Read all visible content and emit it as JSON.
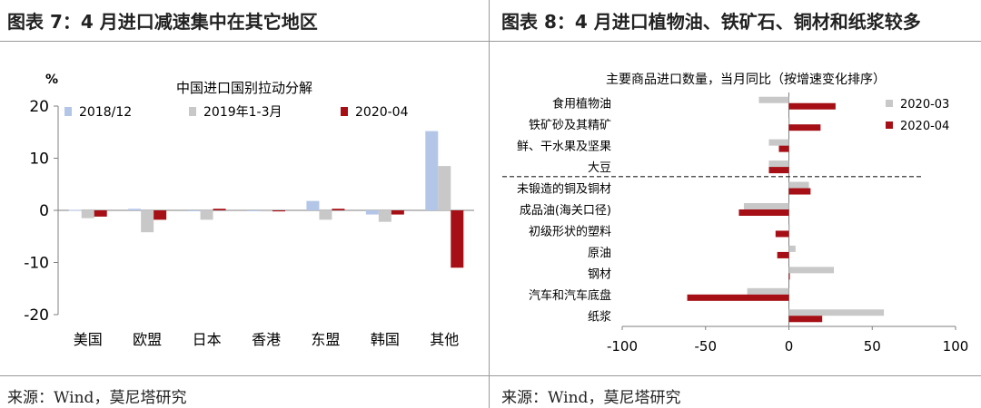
{
  "left": {
    "panel_title": "图表 7：4 月进口减速集中在其它地区",
    "source": "来源：Wind，莫尼塔研究"
  },
  "right": {
    "panel_title": "图表 8：4 月进口植物油、铁矿石、铜材和纸浆较多",
    "source": "来源：Wind，莫尼塔研究"
  },
  "chart_data": [
    {
      "type": "bar",
      "title": "中国进口国别拉动分解",
      "ylabel": "%",
      "ylim": [
        -20,
        20
      ],
      "yticks": [
        "20",
        "10",
        "0",
        "-10",
        "-20"
      ],
      "categories": [
        "美国",
        "欧盟",
        "日本",
        "香港",
        "东盟",
        "韩国",
        "其他"
      ],
      "legend_position": "top",
      "series": [
        {
          "name": "2018/12",
          "color": "#b4c6e7",
          "values": [
            0.1,
            0.3,
            -0.1,
            -0.1,
            1.8,
            -0.8,
            15.2
          ]
        },
        {
          "name": "2019年1-3月",
          "color": "#c8c8c8",
          "values": [
            -1.5,
            -4.2,
            -1.8,
            -0.2,
            -1.8,
            -2.2,
            8.5
          ]
        },
        {
          "name": "2020-04",
          "color": "#a50f15",
          "values": [
            -1.2,
            -1.8,
            0.3,
            -0.2,
            0.3,
            -0.8,
            -11.0
          ]
        }
      ]
    },
    {
      "type": "bar",
      "orientation": "horizontal",
      "title": "主要商品进口数量，当月同比（按增速变化排序）",
      "xlim": [
        -100,
        100
      ],
      "xticks": [
        "-100",
        "-50",
        "0",
        "50",
        "100"
      ],
      "categories": [
        "食用植物油",
        "铁矿砂及其精矿",
        "鲜、干水果及坚果",
        "大豆",
        "未锻造的铜及铜材",
        "成品油(海关口径)",
        "初级形状的塑料",
        "原油",
        "钢材",
        "汽车和汽车底盘",
        "纸浆"
      ],
      "legend_position": "right",
      "series": [
        {
          "name": "2020-03",
          "color": "#c8c8c8",
          "values": [
            -18,
            0,
            -12,
            -12,
            12,
            -27,
            0,
            4,
            27,
            -25,
            57
          ]
        },
        {
          "name": "2020-04",
          "color": "#a50f15",
          "values": [
            28,
            19,
            -6,
            -12,
            13,
            -30,
            -8,
            -7,
            0,
            -61,
            20
          ]
        }
      ]
    }
  ]
}
